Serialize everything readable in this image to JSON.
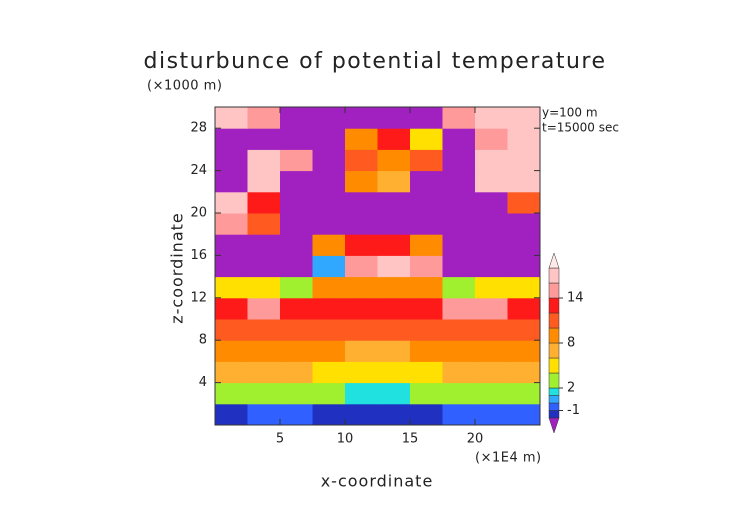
{
  "chart_data": {
    "type": "contour",
    "title": "disturbunce of potential temperature",
    "y_unit": "(×1000 m)",
    "x_unit": "(×1E4 m)",
    "annotations": [
      "y=100 m",
      "t=15000 sec"
    ],
    "x_label": "x-coordinate",
    "y_label": "z-coordinate",
    "x": [
      0,
      2.5,
      5,
      7.5,
      10,
      12.5,
      15,
      17.5,
      20,
      22.5,
      25
    ],
    "y": [
      0,
      2,
      4,
      6,
      8,
      10,
      12,
      14,
      16,
      18,
      20,
      22,
      24,
      26,
      28,
      30
    ],
    "values": [
      [
        -1.5,
        -1,
        -1,
        -1.5,
        -1.5,
        -1.5,
        -1.5,
        -1,
        -1,
        -1
      ],
      [
        3,
        3,
        2,
        2,
        1,
        1,
        2,
        3,
        3,
        3
      ],
      [
        7,
        6,
        6,
        5,
        5,
        5,
        5,
        6,
        6,
        7
      ],
      [
        9,
        9,
        8,
        8,
        7,
        7,
        8,
        9,
        9,
        9
      ],
      [
        11,
        11,
        10,
        10,
        10,
        10,
        10,
        10,
        11,
        11
      ],
      [
        13,
        15,
        13,
        12,
        12,
        12,
        12,
        14,
        15,
        13
      ],
      [
        4,
        4,
        2,
        9,
        8,
        8,
        9,
        2,
        4,
        4
      ],
      [
        -3,
        -3,
        -3,
        0,
        15,
        16,
        14,
        -3,
        -3,
        -3
      ],
      [
        -3,
        -3,
        -3,
        8,
        12,
        12,
        8,
        -3,
        -3,
        -3
      ],
      [
        15,
        10,
        -3,
        -3,
        -3,
        -3,
        -3,
        -3,
        -3,
        -3
      ],
      [
        17,
        12,
        -3,
        -3,
        -3,
        -3,
        -3,
        -3,
        -3,
        10
      ],
      [
        -3,
        17,
        -3,
        -3,
        8,
        6,
        -3,
        -3,
        17,
        17
      ],
      [
        -3,
        16,
        15,
        -3,
        10,
        8,
        10,
        -3,
        17,
        17
      ],
      [
        -3,
        -3,
        -3,
        -3,
        8,
        12,
        5,
        -3,
        15,
        17
      ],
      [
        17,
        15,
        -3,
        -3,
        -3,
        -3,
        -3,
        15,
        17,
        17
      ]
    ],
    "xlim": [
      0,
      25
    ],
    "ylim": [
      0,
      30
    ],
    "xticks": [
      5,
      10,
      15,
      20
    ],
    "yticks": [
      4,
      8,
      12,
      16,
      20,
      24,
      28
    ],
    "colorbar": {
      "levels": [
        -2,
        -1,
        0,
        1,
        2,
        4,
        6,
        8,
        10,
        12,
        14,
        16,
        18
      ],
      "colors": [
        "#2030c0",
        "#3060ff",
        "#30a8ff",
        "#20e0e0",
        "#a0f030",
        "#ffe000",
        "#ffb030",
        "#ff8c00",
        "#ff5a20",
        "#ff1a1a",
        "#ff9a9a",
        "#ffc4c4"
      ],
      "under_color": "#a020c0",
      "over_color": "#ffe8e8",
      "ticks": [
        -1,
        2,
        8,
        14
      ]
    }
  }
}
